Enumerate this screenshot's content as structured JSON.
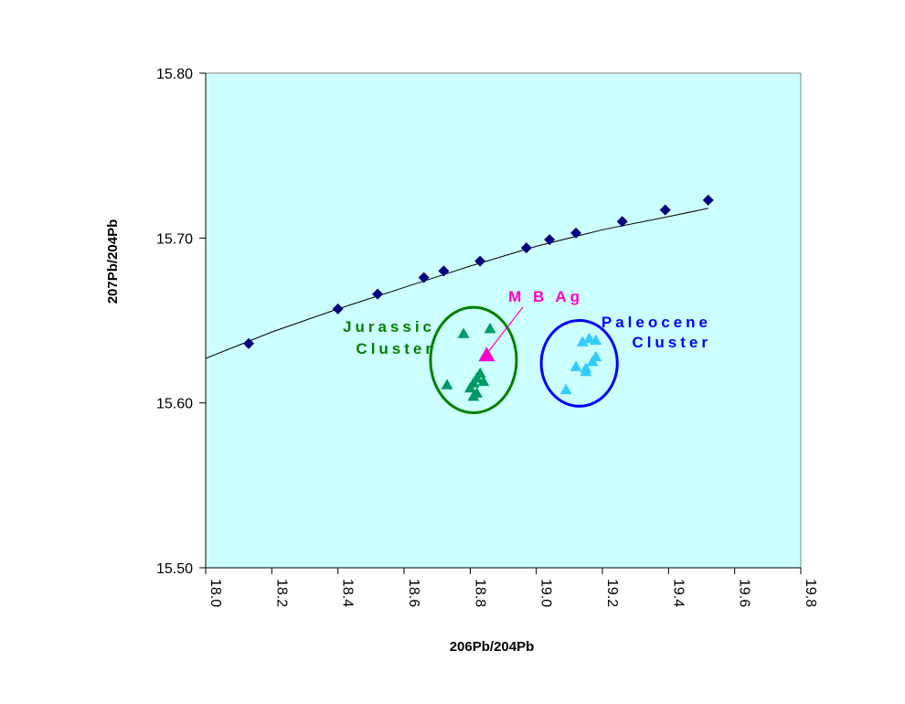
{
  "chart_data": {
    "type": "scatter",
    "title": "",
    "xlabel": "206Pb/204Pb",
    "ylabel": "207Pb/204Pb",
    "xlim": [
      18.0,
      19.8
    ],
    "ylim": [
      15.5,
      15.8
    ],
    "x_ticks": [
      "18.0",
      "18.2",
      "18.4",
      "18.6",
      "18.8",
      "19.0",
      "19.2",
      "19.4",
      "19.6",
      "19.8"
    ],
    "y_ticks": [
      "15.50",
      "15.60",
      "15.70",
      "15.80"
    ],
    "plot_background": "#ccffff",
    "grid": false,
    "legend": "none",
    "series": [
      {
        "marker": "diamond",
        "color": "#000080",
        "points": [
          [
            18.13,
            15.636
          ],
          [
            18.4,
            15.657
          ],
          [
            18.52,
            15.666
          ],
          [
            18.66,
            15.676
          ],
          [
            18.72,
            15.68
          ],
          [
            18.83,
            15.686
          ],
          [
            18.97,
            15.694
          ],
          [
            19.04,
            15.699
          ],
          [
            19.12,
            15.703
          ],
          [
            19.26,
            15.71
          ],
          [
            19.39,
            15.717
          ],
          [
            19.52,
            15.723
          ]
        ]
      },
      {
        "marker": "triangle",
        "color": "#009966",
        "points": [
          [
            18.73,
            15.611
          ],
          [
            18.78,
            15.642
          ],
          [
            18.86,
            15.645
          ],
          [
            18.8,
            15.609
          ],
          [
            18.81,
            15.612
          ],
          [
            18.82,
            15.615
          ],
          [
            18.83,
            15.618
          ],
          [
            18.82,
            15.606
          ],
          [
            18.81,
            15.604
          ],
          [
            18.84,
            15.613
          ]
        ]
      },
      {
        "marker": "triangle",
        "color": "#33ccff",
        "points": [
          [
            19.09,
            15.608
          ],
          [
            19.12,
            15.622
          ],
          [
            19.14,
            15.637
          ],
          [
            19.16,
            15.639
          ],
          [
            19.18,
            15.638
          ],
          [
            19.17,
            15.625
          ],
          [
            19.18,
            15.628
          ],
          [
            19.15,
            15.621
          ],
          [
            19.15,
            15.619
          ]
        ]
      },
      {
        "name": "M B Ag",
        "marker": "triangle",
        "color": "#ff00cc",
        "points": [
          [
            18.85,
            15.629
          ]
        ]
      }
    ],
    "trend_curve": {
      "color": "#000000",
      "points": [
        [
          18.0,
          15.627
        ],
        [
          18.2,
          15.643
        ],
        [
          18.4,
          15.657
        ],
        [
          18.6,
          15.67
        ],
        [
          18.8,
          15.683
        ],
        [
          19.0,
          15.695
        ],
        [
          19.2,
          15.705
        ],
        [
          19.4,
          15.713
        ],
        [
          19.52,
          15.718
        ]
      ]
    },
    "annotations": [
      {
        "lines": [
          "Jurassic",
          "Cluster"
        ],
        "color": "#008000"
      },
      {
        "lines": [
          "Paleocene",
          "Cluster"
        ],
        "color": "#0000ff"
      },
      {
        "lines": [
          "M B Ag"
        ],
        "color": "#ff00cc"
      }
    ],
    "clusters": [
      {
        "color": "#008000",
        "center": [
          18.81,
          15.626
        ],
        "radius": [
          0.13,
          0.032
        ]
      },
      {
        "color": "#0000ff",
        "center": [
          19.13,
          15.624
        ],
        "radius": [
          0.115,
          0.026
        ]
      }
    ]
  }
}
